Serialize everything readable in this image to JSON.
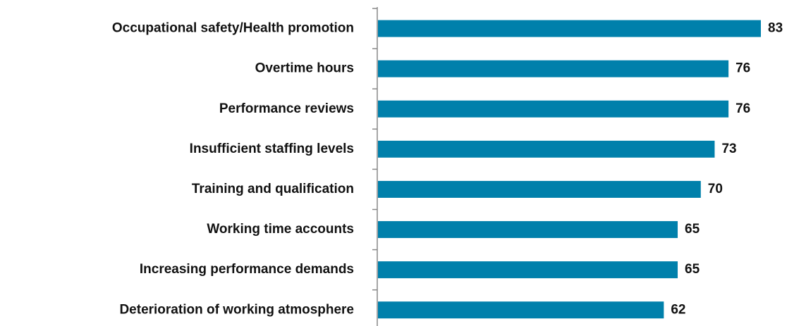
{
  "chart_data": {
    "type": "bar",
    "orientation": "horizontal",
    "categories": [
      "Occupational safety/Health promotion",
      "Overtime hours",
      "Performance reviews",
      "Insufficient staffing levels",
      "Training and qualification",
      "Working time accounts",
      "Increasing performance demands",
      "Deterioration of working atmosphere"
    ],
    "values": [
      83,
      76,
      76,
      73,
      70,
      65,
      65,
      62
    ],
    "color": "#0080ab"
  }
}
